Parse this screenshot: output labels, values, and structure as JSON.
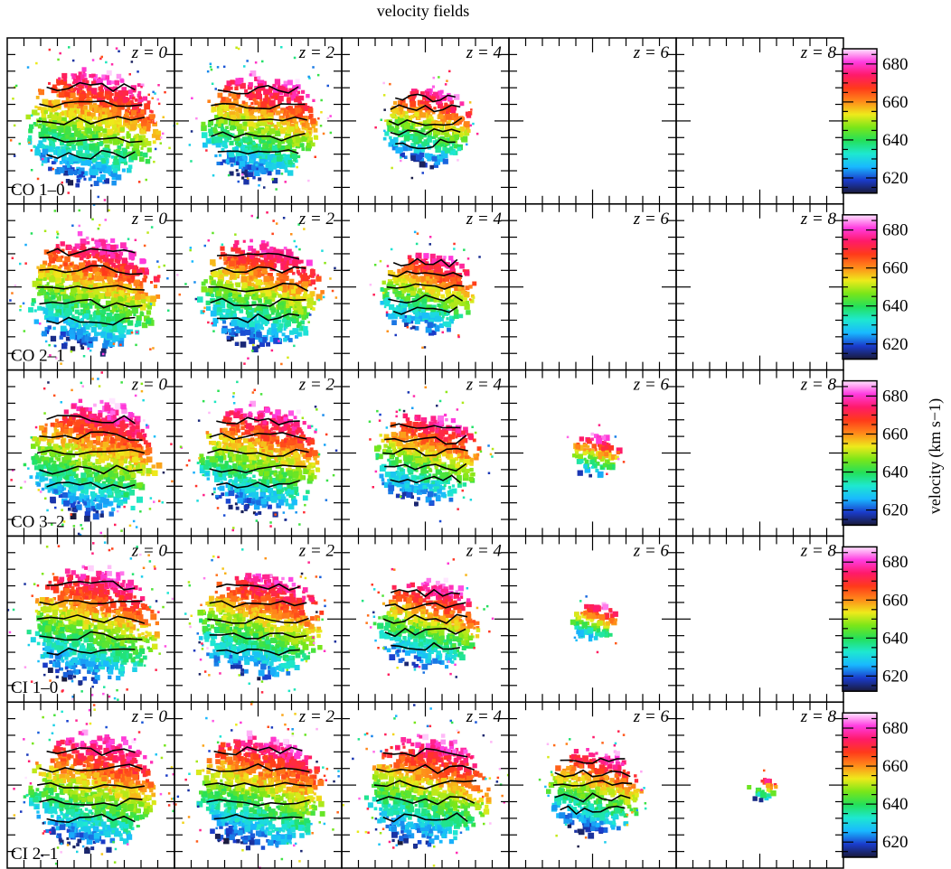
{
  "chart_data": {
    "type": "heatmap",
    "title": "velocity fields",
    "colorbar_label": "velocity (km s−1)",
    "colorbar_ticks": [
      620,
      640,
      660,
      680
    ],
    "colorbar_range": [
      612,
      688
    ],
    "colormap": [
      "#1a1a3a",
      "#1a3ccc",
      "#19b8ff",
      "#1ee8d0",
      "#24e05a",
      "#7ae619",
      "#eeea1b",
      "#ff8a1a",
      "#ff3a1a",
      "#ff1a6a",
      "#ff3ce0",
      "#ffe6ff"
    ],
    "columns": [
      "z = 0",
      "z = 2",
      "z = 4",
      "z = 6",
      "z = 8"
    ],
    "rows": [
      {
        "line": "CO 1–0",
        "emission": [
          1.0,
          0.82,
          0.42,
          0.0,
          0.0
        ]
      },
      {
        "line": "CO 2–1",
        "emission": [
          1.0,
          0.85,
          0.48,
          0.0,
          0.0
        ]
      },
      {
        "line": "CO 3–2",
        "emission": [
          1.0,
          0.88,
          0.6,
          0.1,
          0.0
        ]
      },
      {
        "line": "CI 1–0",
        "emission": [
          1.0,
          0.88,
          0.58,
          0.1,
          0.0
        ]
      },
      {
        "line": "CI 2–1",
        "emission": [
          1.0,
          1.0,
          0.9,
          0.5,
          0.02
        ]
      }
    ]
  }
}
